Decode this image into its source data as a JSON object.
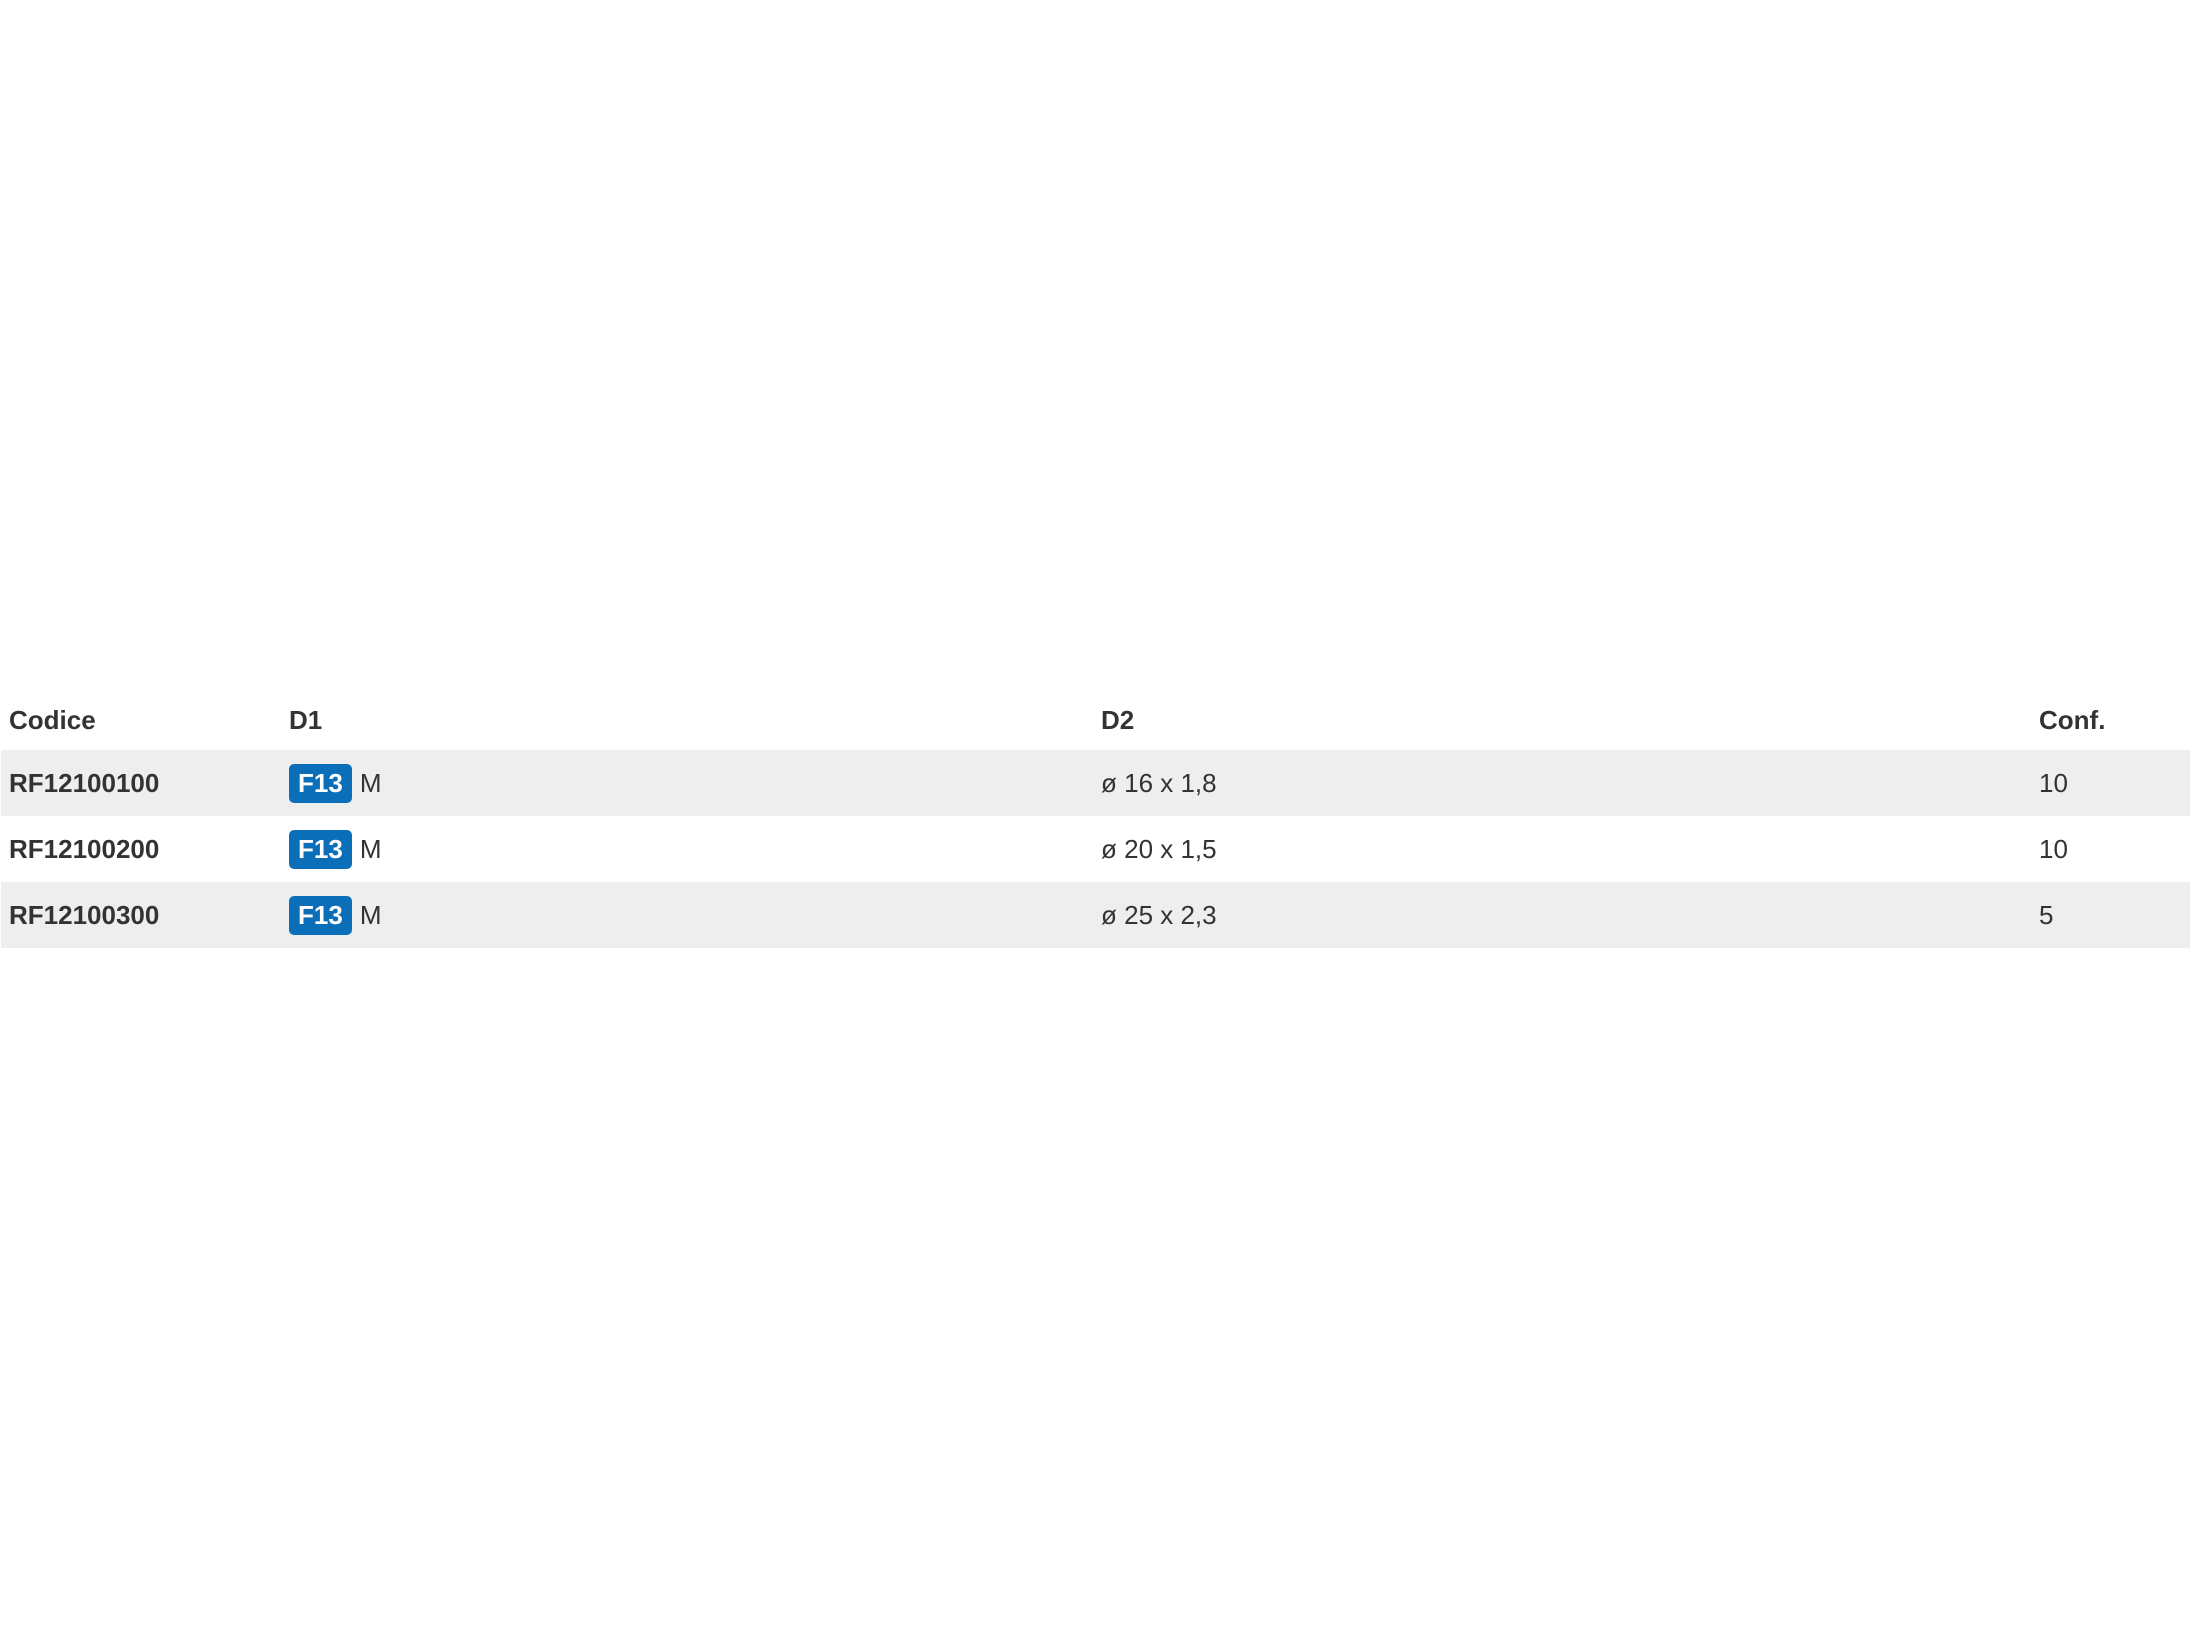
{
  "table": {
    "headers": [
      "Codice",
      "D1",
      "D2",
      "Conf."
    ],
    "badge_color": "#0a6fb8",
    "rows": [
      {
        "codice": "RF12100100",
        "d1_badge": "F13",
        "d1_text": "M",
        "d2": "ø 16 x 1,8",
        "conf": "10"
      },
      {
        "codice": "RF12100200",
        "d1_badge": "F13",
        "d1_text": "M",
        "d2": "ø 20 x 1,5",
        "conf": "10"
      },
      {
        "codice": "RF12100300",
        "d1_badge": "F13",
        "d1_text": "M",
        "d2": "ø 25 x 2,3",
        "conf": "5"
      }
    ]
  }
}
